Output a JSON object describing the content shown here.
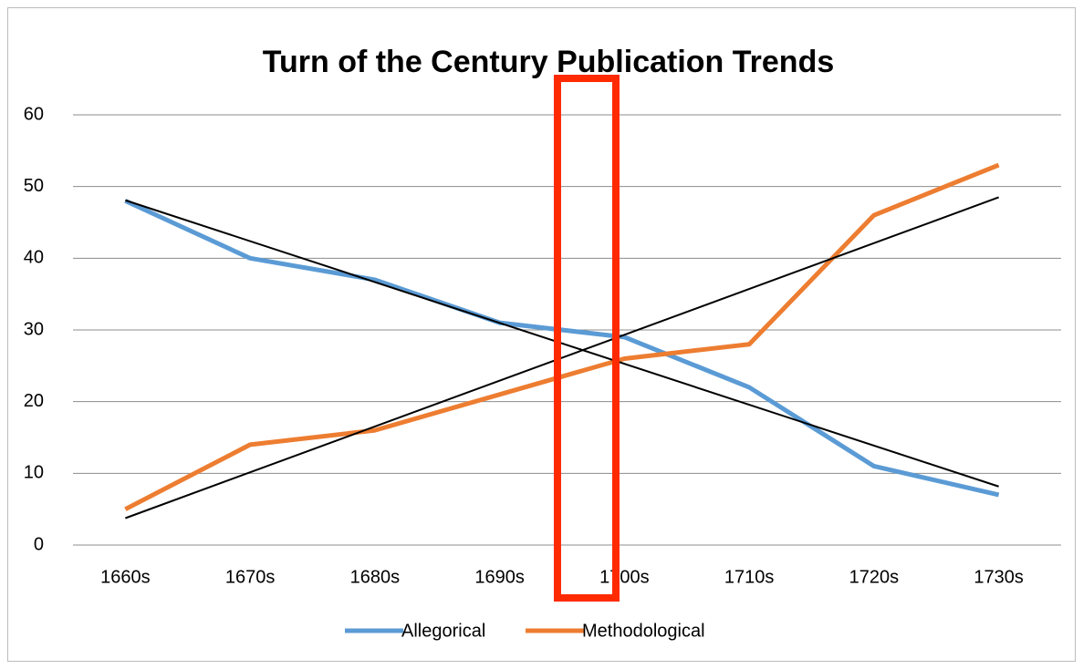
{
  "chart_data": {
    "type": "line",
    "title": "Turn of the Century Publication Trends",
    "categories": [
      "1660s",
      "1670s",
      "1680s",
      "1690s",
      "1700s",
      "1710s",
      "1720s",
      "1730s"
    ],
    "series": [
      {
        "name": "Allegorical",
        "color": "#5b9bd5",
        "values": [
          48,
          40,
          37,
          31,
          29,
          22,
          11,
          7
        ]
      },
      {
        "name": "Methodological",
        "color": "#ed7d31",
        "values": [
          5,
          14,
          16,
          21,
          26,
          28,
          46,
          53
        ]
      }
    ],
    "ylim": [
      0,
      60
    ],
    "yticks": [
      0,
      10,
      20,
      30,
      40,
      50,
      60
    ],
    "grid": true,
    "trendline": true,
    "trendline_color": "#000000",
    "legend": "bottom"
  }
}
